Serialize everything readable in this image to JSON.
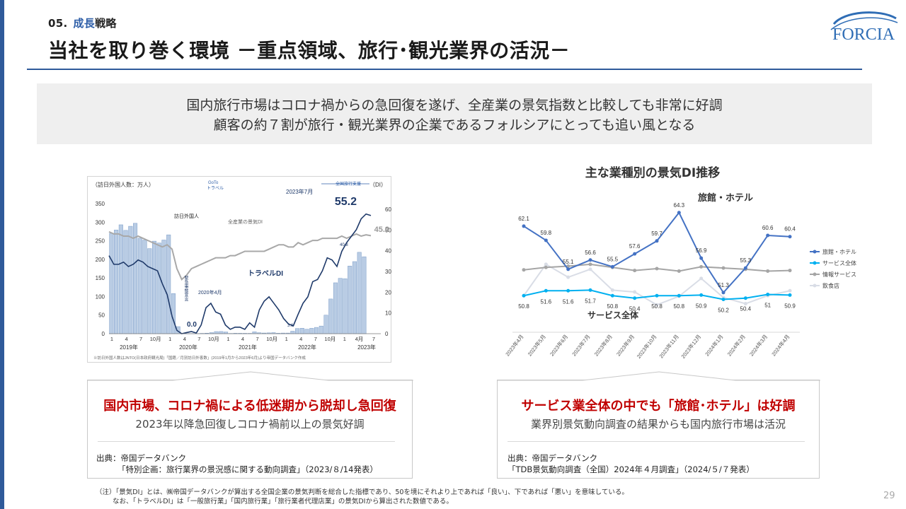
{
  "section": {
    "number": "05.",
    "highlight": "成長",
    "rest": "戦略"
  },
  "title": "当社を取り巻く環境 －重点領域、旅行･観光業界の活況－",
  "logo": "FORCIA",
  "summary": {
    "line1": "国内旅行市場はコロナ禍からの急回復を遂げ、全産業の景気指数と比較しても非常に好調",
    "line2": "顧客の約７割が旅行・観光業界の企業であるフォルシアにとっても追い風となる"
  },
  "left_chart": {
    "y_left_label": "（訪日外国人数：万人）",
    "y_right_label": "（DI）",
    "goto_label": "GoTo\nトラベル",
    "zenkoku_label": "全国旅行支援",
    "latest_period": "2023年7月",
    "latest_value": "55.2",
    "all_industry_value": "45.2",
    "annotation_inbound": "訪日外国人",
    "annotation_alldi": "全産業の景気DI",
    "annotation_traveldi": "トラベルDI",
    "annotation_apr2020": "2020年4月",
    "annotation_zero": "0.0",
    "annotation_emergency": "緊急事態宣言",
    "annotation_36": "3.6",
    "annotation_408": "40.8",
    "y_left_ticks": [
      "350",
      "300",
      "250",
      "200",
      "150",
      "100",
      "50",
      "0"
    ],
    "y_right_ticks": [
      "60",
      "50",
      "40",
      "30",
      "20",
      "10",
      "0"
    ],
    "x_month_ticks": [
      "1",
      "4",
      "7",
      "10月",
      "1",
      "4",
      "7",
      "10月",
      "1",
      "4",
      "7",
      "10月",
      "1",
      "4",
      "7",
      "10月",
      "1",
      "4月",
      "7"
    ],
    "x_year_ticks": [
      "2019年",
      "2020年",
      "2021年",
      "2022年",
      "2023年"
    ],
    "source_note": "※訪日外国人数はJNTO(日本政府観光局)「国籍／月別訪日外客数」(2019年1月から2023年6月)より帝国データバンク作成"
  },
  "right_chart_title": "主な業種別の景気DI推移",
  "chart_data": {
    "type": "line",
    "title": "主な業種別の景気DI推移",
    "categories": [
      "2023年4月",
      "2023年5月",
      "2023年6月",
      "2023年7月",
      "2023年8月",
      "2023年9月",
      "2023年10月",
      "2023年11月",
      "2023年12月",
      "2024年1月",
      "2024年2月",
      "2024年3月",
      "2024年4月"
    ],
    "series": [
      {
        "name": "旅館・ホテル",
        "color": "#4472c4",
        "values": [
          62.1,
          59.8,
          55.1,
          56.6,
          55.5,
          57.6,
          59.7,
          64.3,
          56.9,
          51.3,
          55.3,
          60.6,
          60.4
        ],
        "labels": [
          "62.1",
          "59.8",
          "55.1",
          "56.6",
          "55.5",
          "57.6",
          "59.7",
          "64.3",
          "56.9",
          "51.3",
          "55.3",
          "60.6",
          "60.4"
        ]
      },
      {
        "name": "サービス全体",
        "color": "#00b0f0",
        "values": [
          50.8,
          51.6,
          51.6,
          51.7,
          50.8,
          50.4,
          50.8,
          50.8,
          50.9,
          50.2,
          50.4,
          51.0,
          50.9
        ],
        "labels": [
          "50.8",
          "51.6",
          "51.6",
          "51.7",
          "50.8",
          "50.4",
          "50.8",
          "50.8",
          "50.9",
          "50.2",
          "50.4",
          "51",
          "50.9"
        ]
      },
      {
        "name": "情報サービス",
        "color": "#a5a5a5",
        "values": [
          55.0,
          55.4,
          55.6,
          55.9,
          55.4,
          54.9,
          55.2,
          54.8,
          55.5,
          55.3,
          55.1,
          54.8,
          54.9
        ]
      },
      {
        "name": "飲食店",
        "color": "#d9dde6",
        "values": [
          50.8,
          55.9,
          53.8,
          55.1,
          51.7,
          51.4,
          49.3,
          50.7,
          53.6,
          50.5,
          49.5,
          50.8,
          51.6
        ]
      }
    ],
    "callouts": {
      "hotel": "旅館・ホテル",
      "service": "サービス全体"
    },
    "ylim": [
      46,
      66
    ]
  },
  "conclusions": {
    "left": {
      "head": "国内市場、コロナ禍による低迷期から脱却し急回復",
      "sub": "2023年以降急回復しコロナ禍前以上の景気好調",
      "src1": "出典：帝国データバンク",
      "src2": "「特別企画：旅行業界の景況感に関する動向調査」（2023/８/14発表）"
    },
    "right": {
      "head": "サービス業全体の中でも「旅館･ホテル」は好調",
      "sub": "業界別景気動向調査の結果からも国内旅行市場は活況",
      "src1": "出典：帝国データバンク",
      "src2": "「TDB景気動向調査（全国）2024年４月調査」（2024/５/７発表）"
    }
  },
  "footnote": {
    "line1": "（注）「景気DI」とは、㈱帝国データバンクが算出する全国企業の景気判断を総合した指標であり、50を境にそれより上であれば「良い」、下であれば「悪い」を意味している。",
    "line2": "なお、「トラベルDI」は「一般旅行業」「国内旅行業」「旅行業者代理店業」の景気DIから算出された数値である。"
  },
  "page_number": "29"
}
